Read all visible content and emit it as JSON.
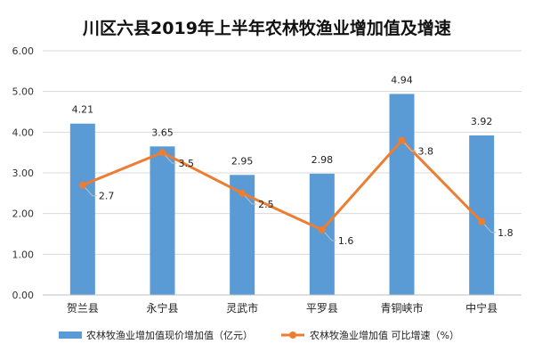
{
  "chart_data": {
    "type": "bar+line",
    "title": "川区六县2019年上半年农林牧渔业增加值及增速",
    "categories": [
      "贺兰县",
      "永宁县",
      "灵武市",
      "平罗县",
      "青铜峡市",
      "中宁县"
    ],
    "series": [
      {
        "name": "农林牧渔业增加值现价增加值（亿元）",
        "type": "bar",
        "color": "#5b9bd5",
        "values": [
          4.21,
          3.65,
          2.95,
          2.98,
          4.94,
          3.92
        ],
        "labels": [
          "4.21",
          "3.65",
          "2.95",
          "2.98",
          "4.94",
          "3.92"
        ]
      },
      {
        "name": "农林牧渔业增加值 可比增速（%）",
        "type": "line",
        "color": "#ed7d31",
        "values": [
          2.7,
          3.5,
          2.5,
          1.6,
          3.8,
          1.8
        ],
        "labels": [
          "2.7",
          "3.5",
          "2.5",
          "1.6",
          "3.8",
          "1.8"
        ]
      }
    ],
    "ylim": [
      0,
      6
    ],
    "yticks": [
      0,
      1,
      2,
      3,
      4,
      5,
      6
    ],
    "ytick_labels": [
      "0.00",
      "1.00",
      "2.00",
      "3.00",
      "4.00",
      "5.00",
      "6.00"
    ],
    "grid": true,
    "legend_position": "bottom"
  }
}
